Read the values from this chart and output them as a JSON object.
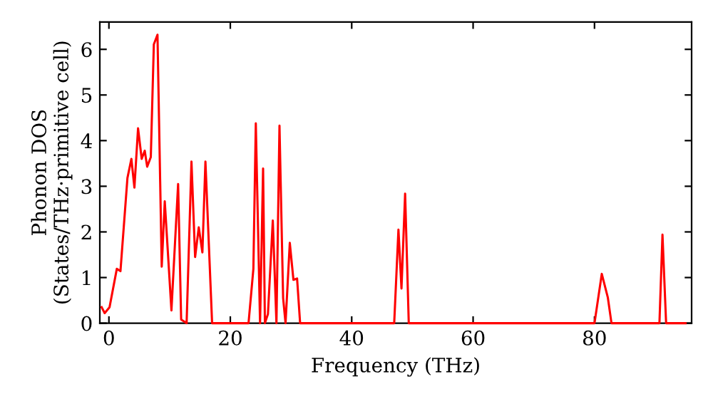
{
  "chart_data": {
    "type": "line",
    "xlabel": "Frequency (THz)",
    "ylabel": "Phonon DOS\n(States/THz·primitive cell)",
    "xlim": [
      -1.5,
      96
    ],
    "ylim": [
      0,
      6.6
    ],
    "xticks": [
      0,
      20,
      40,
      60,
      80
    ],
    "yticks": [
      0,
      1,
      2,
      3,
      4,
      5,
      6
    ],
    "grid": false,
    "marker": "none",
    "line_style": "solid",
    "series": [
      {
        "color": "#ff0000",
        "x": [
          -1.2,
          -0.7,
          0.1,
          1.3,
          1.9,
          3.05,
          3.7,
          4.2,
          4.8,
          5.4,
          5.9,
          6.3,
          6.9,
          7.4,
          8.0,
          8.7,
          9.2,
          10.3,
          11.4,
          11.9,
          12.8,
          13.6,
          14.2,
          14.8,
          15.4,
          15.9,
          17.0,
          23.0,
          23.8,
          24.2,
          24.9,
          25.4,
          25.7,
          26.2,
          27.0,
          27.6,
          28.1,
          28.7,
          29.1,
          29.8,
          30.4,
          31.0,
          31.5,
          47.0,
          47.7,
          48.2,
          48.8,
          49.4,
          80.0,
          81.2,
          82.2,
          82.8,
          90.7,
          91.2,
          91.8,
          95
        ],
        "values": [
          0.35,
          0.22,
          0.35,
          1.19,
          1.14,
          3.18,
          3.6,
          2.97,
          4.27,
          3.6,
          3.78,
          3.43,
          3.64,
          6.11,
          6.32,
          1.24,
          2.67,
          0.28,
          3.05,
          0.08,
          0,
          3.54,
          1.45,
          2.1,
          1.55,
          3.54,
          0,
          0,
          1.19,
          4.38,
          0,
          3.39,
          0,
          0.2,
          2.25,
          0,
          4.33,
          0.55,
          0,
          1.76,
          0.95,
          0.98,
          0,
          0,
          2.05,
          0.76,
          2.84,
          0,
          0,
          1.08,
          0.56,
          0,
          0,
          1.94,
          0,
          0
        ]
      }
    ]
  }
}
